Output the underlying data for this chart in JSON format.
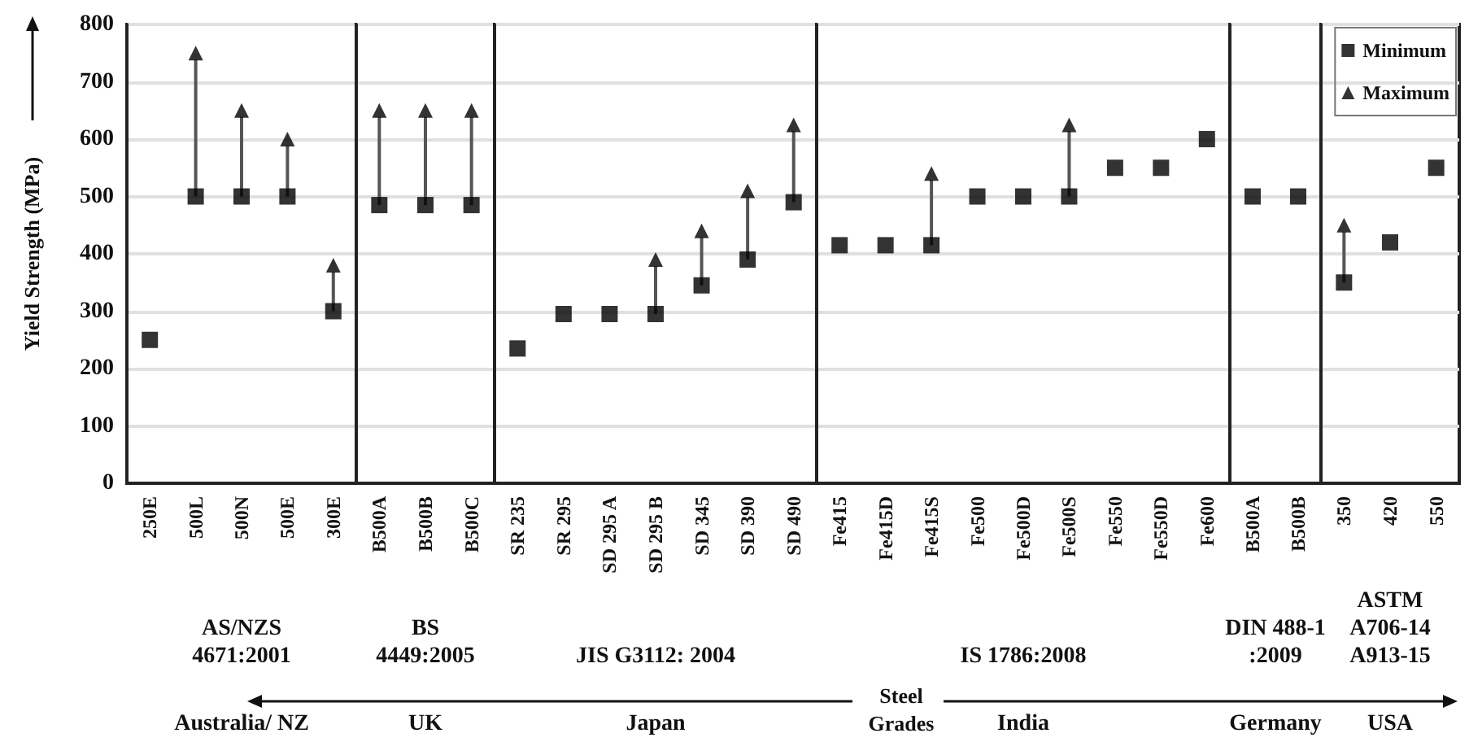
{
  "chart_data": [
    {
      "type": "scatter",
      "ylabel": "Yield Strength (MPa)",
      "xlabel": "AS/NZS\n4671:2001",
      "categories": [
        "250E",
        "500L",
        "500N",
        "500E",
        "300E"
      ],
      "series": [
        {
          "color": "#000000",
          "marker": "square",
          "values": [
            250,
            500,
            500,
            500,
            300
          ]
        },
        {
          "color": "#000000",
          "marker": "triangle",
          "values": [
            null,
            750,
            650,
            600,
            380
          ]
        }
      ],
      "annotations": [
        "Australia/ NZ"
      ],
      "ylim": [
        0,
        800
      ],
      "yticks": [
        0,
        100,
        200,
        300,
        400,
        500,
        600,
        700,
        800
      ],
      "grid": "y"
    },
    {
      "type": "scatter",
      "xlabel": "BS\n4449:2005",
      "categories": [
        "B500A",
        "B500B",
        "B500C"
      ],
      "series": [
        {
          "color": "#000000",
          "marker": "square",
          "values": [
            485,
            485,
            485
          ]
        },
        {
          "color": "#000000",
          "marker": "triangle",
          "values": [
            650,
            650,
            650
          ]
        }
      ],
      "annotations": [
        "UK"
      ],
      "ylim": [
        0,
        800
      ],
      "yticks": [
        0,
        100,
        200,
        300,
        400,
        500,
        600,
        700,
        800
      ],
      "grid": "y",
      "tick_labels": "x"
    },
    {
      "type": "scatter",
      "xlabel": "JIS G3112: 2004",
      "categories": [
        "SR 235",
        "SR 295",
        "SD 295 A",
        "SD 295 B",
        "SD 345",
        "SD 390",
        "SD 490"
      ],
      "series": [
        {
          "color": "#000000",
          "marker": "square",
          "values": [
            235,
            295,
            295,
            295,
            345,
            390,
            490
          ]
        },
        {
          "color": "#000000",
          "marker": "triangle",
          "values": [
            null,
            null,
            null,
            390,
            440,
            510,
            625
          ]
        }
      ],
      "annotations": [
        "Japan"
      ],
      "ylim": [
        0,
        800
      ],
      "yticks": [
        0,
        100,
        200,
        300,
        400,
        500,
        600,
        700,
        800
      ],
      "grid": "y",
      "tick_labels": "x"
    },
    {
      "type": "scatter",
      "xlabel": "IS 1786:2008",
      "categories": [
        "Fe415",
        "Fe415D",
        "Fe415S",
        "Fe500",
        "Fe500D",
        "Fe500S",
        "Fe550",
        "Fe550D",
        "Fe600"
      ],
      "series": [
        {
          "color": "#000000",
          "marker": "square",
          "values": [
            415,
            415,
            415,
            500,
            500,
            500,
            550,
            550,
            600
          ]
        },
        {
          "color": "#000000",
          "marker": "triangle",
          "values": [
            null,
            null,
            540,
            null,
            null,
            625,
            null,
            null,
            null
          ]
        }
      ],
      "annotations": [
        "India",
        "Steel\nGrades"
      ],
      "ylim": [
        0,
        800
      ],
      "yticks": [
        0,
        100,
        200,
        300,
        400,
        500,
        600,
        700,
        800
      ],
      "grid": "y",
      "tick_labels": "x"
    },
    {
      "type": "scatter",
      "xlabel": "DIN 488-1\n:2009",
      "categories": [
        "B500A",
        "B500B"
      ],
      "series": [
        {
          "color": "#000000",
          "marker": "square",
          "values": [
            500,
            500
          ]
        }
      ],
      "annotations": [
        "Germany"
      ],
      "ylim": [
        0,
        800
      ],
      "yticks": [
        0,
        100,
        200,
        300,
        400,
        500,
        600,
        700,
        800
      ],
      "grid": "y",
      "tick_labels": "x"
    },
    {
      "type": "scatter",
      "xlabel": "ASTM\nA706-14\nA913-15",
      "categories": [
        "350",
        "420",
        "550"
      ],
      "series": [
        {
          "name": "Minimum",
          "color": "#000000",
          "marker": "square",
          "values": [
            350,
            420,
            550
          ]
        },
        {
          "name": "Maximum",
          "color": "#000000",
          "marker": "triangle",
          "values": [
            450,
            null,
            null
          ]
        }
      ],
      "annotations": [
        "USA"
      ],
      "ylim": [
        0,
        800
      ],
      "yticks": [
        0,
        100,
        200,
        300,
        400,
        500,
        600,
        700,
        800
      ],
      "grid": "y",
      "tick_labels": "x",
      "legend": "top right"
    }
  ]
}
